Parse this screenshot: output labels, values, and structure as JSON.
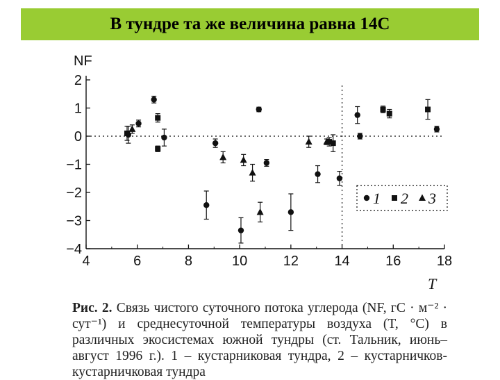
{
  "slide": {
    "title": "В тундре та же величина равна 14С"
  },
  "chart_data": {
    "type": "scatter",
    "title": "",
    "xlabel": "T",
    "ylabel": "NF",
    "xlim": [
      4,
      18
    ],
    "ylim": [
      -4,
      2
    ],
    "x_ticks": [
      4,
      6,
      8,
      10,
      12,
      14,
      16,
      18
    ],
    "x_tick_labels": [
      "4",
      "6",
      "8",
      "10",
      "12",
      "14",
      "16",
      "18"
    ],
    "y_ticks": [
      2,
      1,
      0,
      -1,
      -2,
      -3,
      -4
    ],
    "y_tick_labels": [
      "2",
      "1",
      "0",
      "−1",
      "−2",
      "−3",
      "−4"
    ],
    "reference_lines": {
      "y": 0,
      "x": 14
    },
    "grid": false,
    "legend_position": "bottom-right",
    "series": [
      {
        "name": "1",
        "marker": "circle",
        "points": [
          {
            "x": 5.65,
            "y": 0.05,
            "err": 0.3
          },
          {
            "x": 6.05,
            "y": 0.45,
            "err": 0.12
          },
          {
            "x": 6.65,
            "y": 1.3,
            "err": 0.12
          },
          {
            "x": 7.05,
            "y": -0.05,
            "err": 0.3
          },
          {
            "x": 8.7,
            "y": -2.45,
            "err": 0.5
          },
          {
            "x": 9.05,
            "y": -0.25,
            "err": 0.15
          },
          {
            "x": 10.05,
            "y": -3.35,
            "err": 0.45
          },
          {
            "x": 10.75,
            "y": 0.95,
            "err": 0.08
          },
          {
            "x": 11.05,
            "y": -0.95,
            "err": 0.12
          },
          {
            "x": 12.0,
            "y": -2.7,
            "err": 0.65
          },
          {
            "x": 13.05,
            "y": -1.35,
            "err": 0.3
          },
          {
            "x": 13.9,
            "y": -1.5,
            "err": 0.25
          },
          {
            "x": 14.6,
            "y": 0.75,
            "err": 0.3
          },
          {
            "x": 14.7,
            "y": 0.0,
            "err": 0.1
          },
          {
            "x": 17.7,
            "y": 0.25,
            "err": 0.1
          }
        ]
      },
      {
        "name": "2",
        "marker": "square",
        "points": [
          {
            "x": 5.6,
            "y": 0.1,
            "err": 0.25
          },
          {
            "x": 6.8,
            "y": 0.65,
            "err": 0.15
          },
          {
            "x": 6.8,
            "y": -0.45,
            "err": 0.1
          },
          {
            "x": 13.5,
            "y": -0.2,
            "err": 0.15
          },
          {
            "x": 13.65,
            "y": -0.25,
            "err": 0.3
          },
          {
            "x": 15.6,
            "y": 0.95,
            "err": 0.12
          },
          {
            "x": 15.85,
            "y": 0.8,
            "err": 0.15
          },
          {
            "x": 17.35,
            "y": 0.95,
            "err": 0.35
          }
        ]
      },
      {
        "name": "3",
        "marker": "triangle",
        "points": [
          {
            "x": 5.8,
            "y": 0.25,
            "err": 0.15
          },
          {
            "x": 9.35,
            "y": -0.75,
            "err": 0.2
          },
          {
            "x": 10.15,
            "y": -0.85,
            "err": 0.2
          },
          {
            "x": 10.5,
            "y": -1.3,
            "err": 0.3
          },
          {
            "x": 10.8,
            "y": -2.7,
            "err": 0.35
          },
          {
            "x": 12.7,
            "y": -0.2,
            "err": 0.2
          },
          {
            "x": 13.4,
            "y": -0.2,
            "err": 0.1
          }
        ]
      }
    ]
  },
  "caption": {
    "lead": "Рис. 2.",
    "text": "Связь чистого суточного потока углерода (NF, гC · м⁻² · сут⁻¹) и среднесуточной температуры воздуха (T, °С) в различных экосистемах южной тундры (ст. Тальник, июнь–август 1996 г.). 1 – кустарниковая тундра, 2 – кустарничков-кустарничковая тундра"
  },
  "colors": {
    "title_bar": "#99cc33",
    "ink": "#111111",
    "background": "#ffffff"
  }
}
